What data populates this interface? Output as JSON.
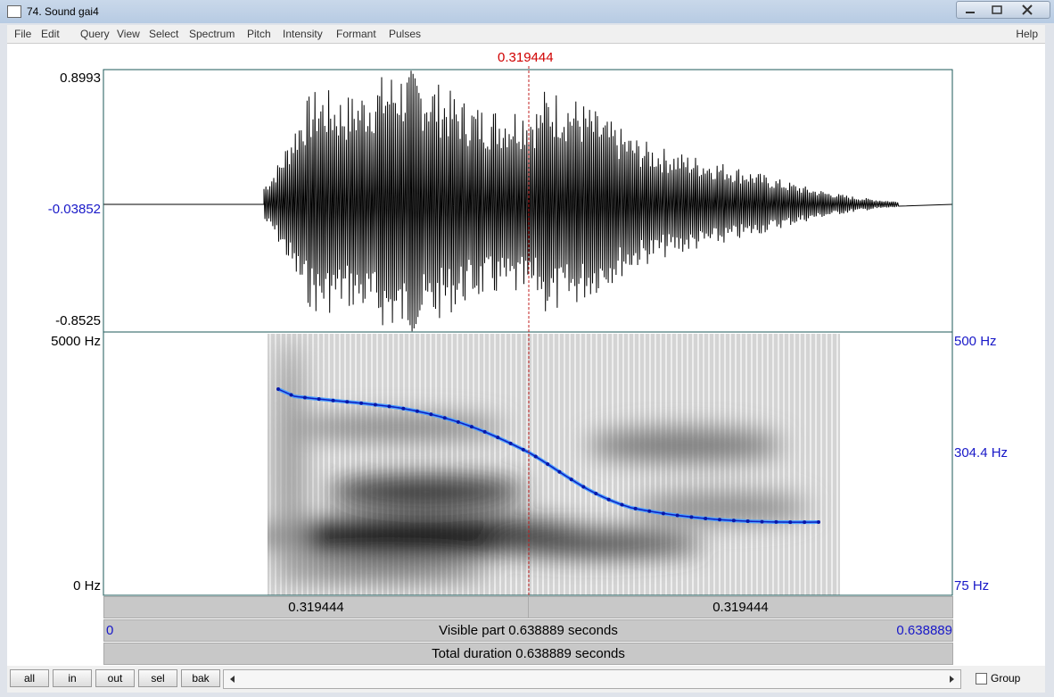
{
  "window": {
    "title": "74. Sound gai4"
  },
  "menu": {
    "items": [
      "File",
      "Edit",
      "Query",
      "View",
      "Select",
      "Spectrum",
      "Pitch",
      "Intensity",
      "Formant",
      "Pulses"
    ],
    "help": "Help"
  },
  "editor": {
    "cursor": "0.319444",
    "waveform": {
      "max": "0.8993",
      "center": "-0.03852",
      "min": "-0.8525"
    },
    "spectrogram": {
      "top": "5000 Hz",
      "bottom": "0 Hz"
    },
    "pitch": {
      "top": "500 Hz",
      "cursor": "304.4 Hz",
      "bottom": "75 Hz"
    },
    "selection": {
      "left": "0.319444",
      "right": "0.319444"
    },
    "visible": {
      "start": "0",
      "label": "Visible part 0.638889 seconds",
      "end": "0.638889"
    },
    "total": "Total duration 0.638889 seconds"
  },
  "buttons": [
    "all",
    "in",
    "out",
    "sel",
    "bak"
  ],
  "group": "Group"
}
